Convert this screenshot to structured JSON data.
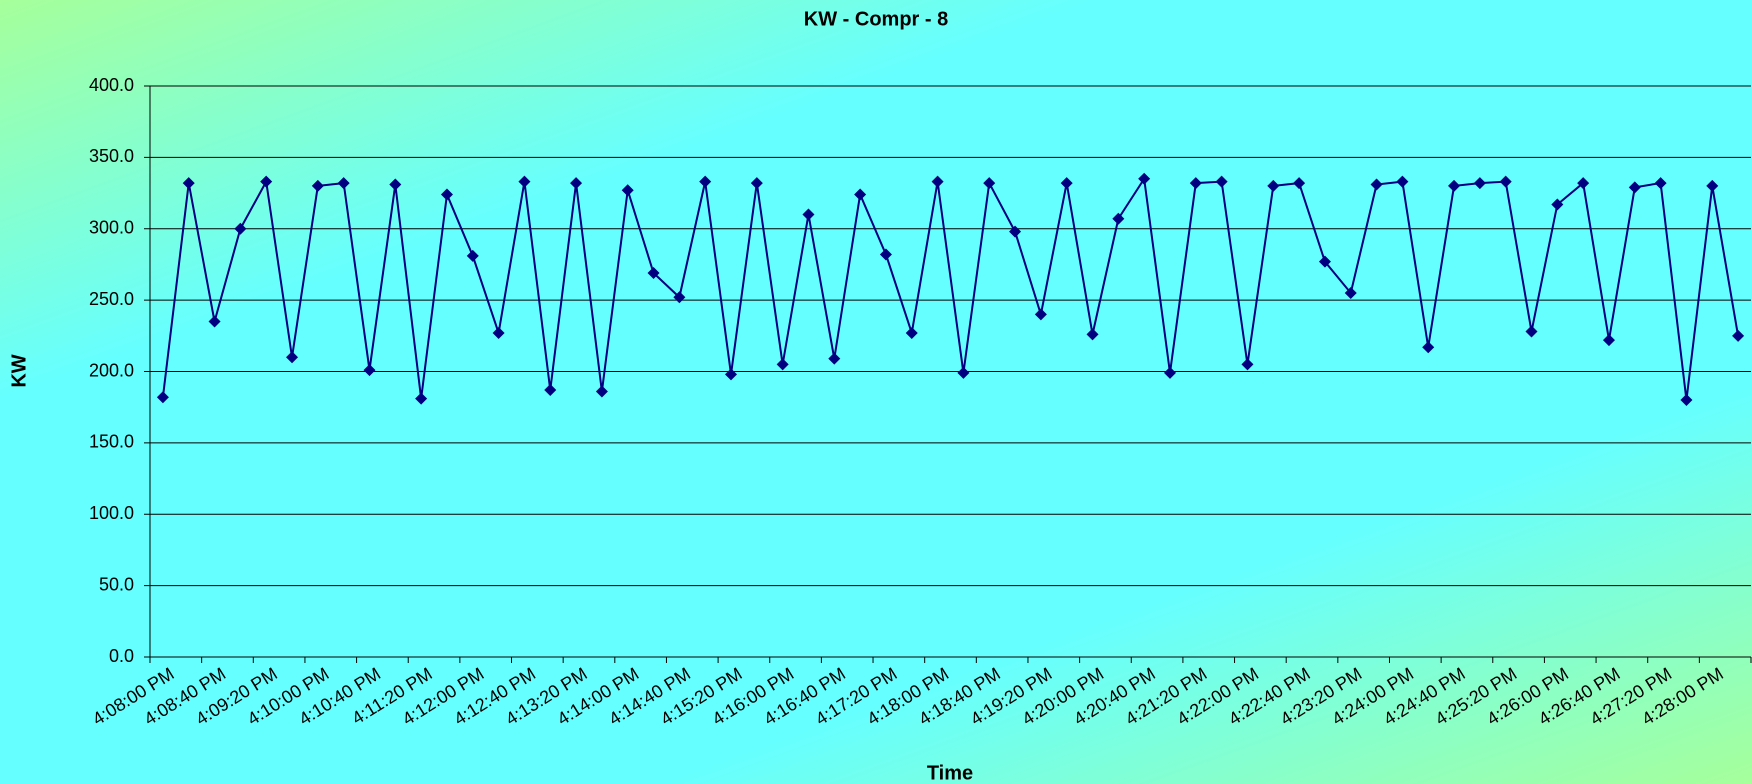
{
  "chart_data": {
    "type": "line",
    "title": "KW - Compr - 8",
    "x_label": "Time",
    "y_label": "KW",
    "categories": [
      "4:08:00 PM",
      null,
      "4:08:40 PM",
      null,
      "4:09:20 PM",
      null,
      "4:10:00 PM",
      null,
      "4:10:40 PM",
      null,
      "4:11:20 PM",
      null,
      "4:12:00 PM",
      null,
      "4:12:40 PM",
      null,
      "4:13:20 PM",
      null,
      "4:14:00 PM",
      null,
      "4:14:40 PM",
      null,
      "4:15:20 PM",
      null,
      "4:16:00 PM",
      null,
      "4:16:40 PM",
      null,
      "4:17:20 PM",
      null,
      "4:18:00 PM",
      null,
      "4:18:40 PM",
      null,
      "4:19:20 PM",
      null,
      "4:20:00 PM",
      null,
      "4:20:40 PM",
      null,
      "4:21:20 PM",
      null,
      "4:22:00 PM",
      null,
      "4:22:40 PM",
      null,
      "4:23:20 PM",
      null,
      "4:24:00 PM",
      null,
      "4:24:40 PM",
      null,
      "4:25:20 PM",
      null,
      "4:26:00 PM",
      null,
      "4:26:40 PM",
      null,
      "4:27:20 PM",
      null,
      "4:28:00 PM",
      null
    ],
    "values": [
      182,
      332,
      235,
      300,
      333,
      210,
      330,
      332,
      201,
      331,
      181,
      324,
      281,
      227,
      333,
      187,
      332,
      186,
      327,
      269,
      252,
      333,
      198,
      332,
      205,
      310,
      209,
      324,
      282,
      227,
      333,
      199,
      332,
      298,
      240,
      332,
      226,
      307,
      335,
      199,
      332,
      333,
      205,
      330,
      332,
      277,
      255,
      331,
      333,
      217,
      330,
      332,
      333,
      228,
      317,
      332,
      222,
      329,
      332,
      180,
      330,
      225
    ],
    "color": "#000080",
    "ylim": [
      0,
      400
    ],
    "yticks": [
      {
        "value": 0,
        "label": "0.0"
      },
      {
        "value": 50,
        "label": "50.0"
      },
      {
        "value": 100,
        "label": "100.0"
      },
      {
        "value": 150,
        "label": "150.0"
      },
      {
        "value": 200,
        "label": "200.0"
      },
      {
        "value": 250,
        "label": "250.0"
      },
      {
        "value": 300,
        "label": "300.0"
      },
      {
        "value": 350,
        "label": "350.0"
      },
      {
        "value": 400,
        "label": "400.0"
      }
    ],
    "grid": true
  }
}
